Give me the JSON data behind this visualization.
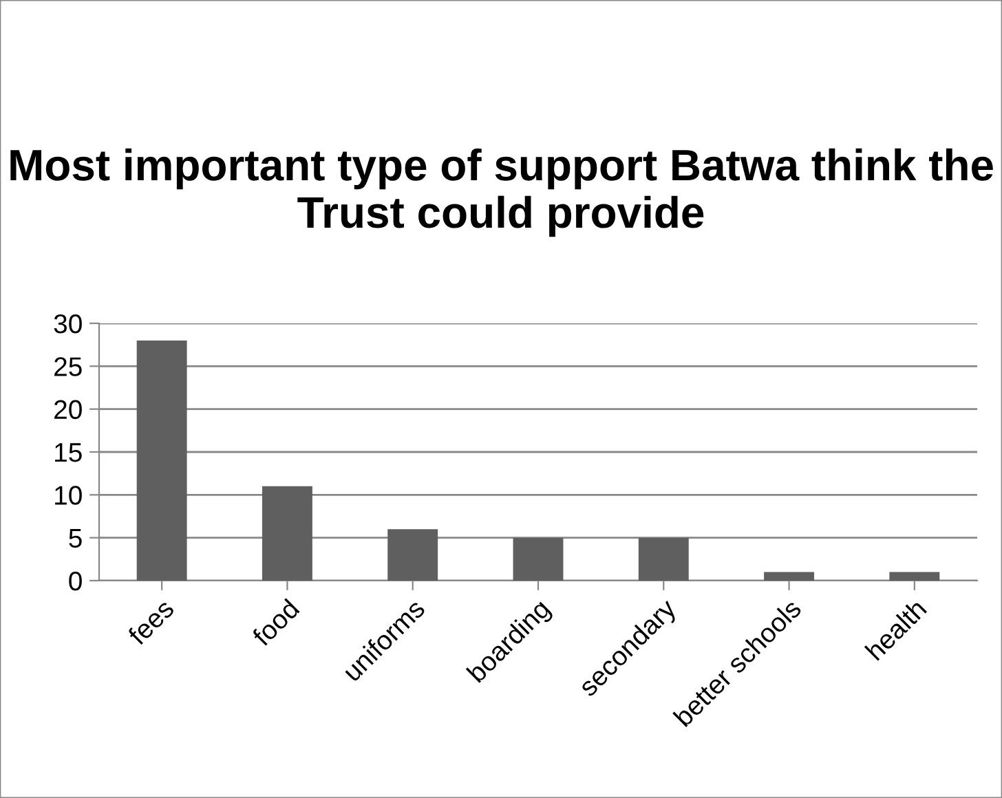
{
  "chart_data": {
    "type": "bar",
    "title": "Most important type of support Batwa think the Trust could provide",
    "categories": [
      "fees",
      "food",
      "uniforms",
      "boarding",
      "secondary",
      "better schools",
      "health"
    ],
    "values": [
      28,
      11,
      6,
      5,
      5,
      1,
      1
    ],
    "color": "#5f5f5f",
    "ylim": [
      0,
      30
    ],
    "yticks": [
      0,
      5,
      10,
      15,
      20,
      25,
      30
    ],
    "grid": "y",
    "legend": false
  }
}
